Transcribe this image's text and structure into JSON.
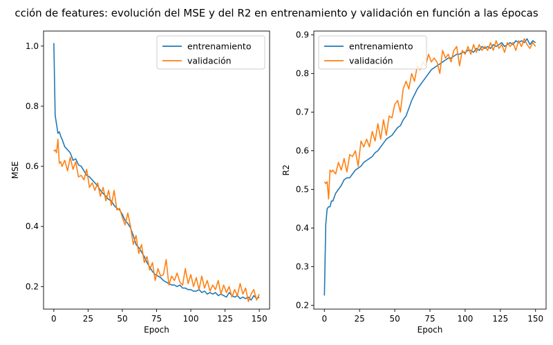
{
  "figure": {
    "title": "cción de features: evolución del MSE y del R2 en entrenamiento y validación en función a las épocas"
  },
  "colors": {
    "train": "#1f77b4",
    "val": "#ff7f0e"
  },
  "chart_data": [
    {
      "type": "line",
      "xlabel": "Epoch",
      "ylabel": "MSE",
      "xlim": [
        -7.5,
        157.5
      ],
      "ylim": [
        0.125,
        1.05
      ],
      "xticks": [
        0,
        25,
        50,
        75,
        100,
        125,
        150
      ],
      "yticks": [
        0.2,
        0.4,
        0.6,
        0.8,
        1.0
      ],
      "ytick_labels": [
        "0.2",
        "0.4",
        "0.6",
        "0.8",
        "1.0"
      ],
      "grid": false,
      "legend_position": "upper right",
      "series": [
        {
          "name": "entrenamiento",
          "color": "#1f77b4",
          "x": [
            0,
            1,
            2,
            3,
            4,
            5,
            6,
            8,
            10,
            12,
            14,
            16,
            18,
            20,
            22,
            24,
            26,
            28,
            30,
            32,
            34,
            36,
            38,
            40,
            42,
            44,
            46,
            48,
            50,
            52,
            54,
            56,
            58,
            60,
            62,
            64,
            66,
            68,
            70,
            72,
            74,
            76,
            78,
            80,
            82,
            84,
            86,
            88,
            90,
            92,
            94,
            96,
            98,
            100,
            102,
            104,
            106,
            108,
            110,
            112,
            114,
            116,
            118,
            120,
            122,
            124,
            126,
            128,
            130,
            132,
            134,
            136,
            138,
            140,
            142,
            144,
            146,
            148,
            150
          ],
          "y": [
            1.01,
            0.77,
            0.74,
            0.71,
            0.715,
            0.7,
            0.69,
            0.665,
            0.655,
            0.645,
            0.62,
            0.625,
            0.605,
            0.6,
            0.585,
            0.57,
            0.565,
            0.555,
            0.545,
            0.535,
            0.52,
            0.51,
            0.5,
            0.49,
            0.485,
            0.47,
            0.46,
            0.455,
            0.44,
            0.42,
            0.41,
            0.395,
            0.37,
            0.34,
            0.33,
            0.315,
            0.3,
            0.28,
            0.265,
            0.25,
            0.24,
            0.235,
            0.23,
            0.22,
            0.215,
            0.21,
            0.205,
            0.205,
            0.2,
            0.205,
            0.195,
            0.195,
            0.19,
            0.19,
            0.185,
            0.185,
            0.19,
            0.18,
            0.185,
            0.175,
            0.18,
            0.175,
            0.18,
            0.17,
            0.175,
            0.17,
            0.165,
            0.18,
            0.17,
            0.165,
            0.17,
            0.16,
            0.165,
            0.16,
            0.165,
            0.155,
            0.17,
            0.16,
            0.165
          ]
        },
        {
          "name": "validación",
          "color": "#ff7f0e",
          "x": [
            0,
            1,
            2,
            3,
            4,
            5,
            6,
            8,
            10,
            12,
            14,
            16,
            18,
            20,
            22,
            24,
            26,
            28,
            30,
            32,
            34,
            36,
            38,
            40,
            42,
            44,
            46,
            48,
            50,
            52,
            54,
            56,
            58,
            60,
            62,
            64,
            66,
            68,
            70,
            72,
            74,
            76,
            78,
            80,
            82,
            84,
            86,
            88,
            90,
            92,
            94,
            96,
            98,
            100,
            102,
            104,
            106,
            108,
            110,
            112,
            114,
            116,
            118,
            120,
            122,
            124,
            126,
            128,
            130,
            132,
            134,
            136,
            138,
            140,
            142,
            144,
            146,
            148,
            150
          ],
          "y": [
            0.65,
            0.655,
            0.645,
            0.69,
            0.61,
            0.615,
            0.6,
            0.62,
            0.585,
            0.63,
            0.59,
            0.615,
            0.565,
            0.57,
            0.555,
            0.59,
            0.53,
            0.545,
            0.52,
            0.545,
            0.5,
            0.53,
            0.485,
            0.52,
            0.47,
            0.52,
            0.455,
            0.46,
            0.43,
            0.405,
            0.445,
            0.4,
            0.34,
            0.37,
            0.31,
            0.34,
            0.28,
            0.3,
            0.255,
            0.28,
            0.22,
            0.26,
            0.235,
            0.24,
            0.29,
            0.205,
            0.235,
            0.22,
            0.245,
            0.215,
            0.205,
            0.26,
            0.21,
            0.24,
            0.2,
            0.23,
            0.19,
            0.235,
            0.195,
            0.22,
            0.185,
            0.205,
            0.19,
            0.22,
            0.175,
            0.205,
            0.18,
            0.2,
            0.165,
            0.19,
            0.17,
            0.21,
            0.175,
            0.195,
            0.15,
            0.175,
            0.19,
            0.155,
            0.175
          ]
        }
      ]
    },
    {
      "type": "line",
      "xlabel": "Epoch",
      "ylabel": "R2",
      "xlim": [
        -7.5,
        157.5
      ],
      "ylim": [
        0.19,
        0.91
      ],
      "xticks": [
        0,
        25,
        50,
        75,
        100,
        125,
        150
      ],
      "yticks": [
        0.2,
        0.3,
        0.4,
        0.5,
        0.6,
        0.7,
        0.8,
        0.9
      ],
      "ytick_labels": [
        "0.2",
        "0.3",
        "0.4",
        "0.5",
        "0.6",
        "0.7",
        "0.8",
        "0.9"
      ],
      "grid": false,
      "legend_position": "upper left",
      "series": [
        {
          "name": "entrenamiento",
          "color": "#1f77b4",
          "x": [
            0,
            1,
            2,
            3,
            4,
            5,
            6,
            8,
            10,
            12,
            14,
            16,
            18,
            20,
            22,
            24,
            26,
            28,
            30,
            32,
            34,
            36,
            38,
            40,
            42,
            44,
            46,
            48,
            50,
            52,
            54,
            56,
            58,
            60,
            62,
            64,
            66,
            68,
            70,
            72,
            74,
            76,
            78,
            80,
            82,
            84,
            86,
            88,
            90,
            92,
            94,
            96,
            98,
            100,
            102,
            104,
            106,
            108,
            110,
            112,
            114,
            116,
            118,
            120,
            122,
            124,
            126,
            128,
            130,
            132,
            134,
            136,
            138,
            140,
            142,
            144,
            146,
            148,
            150
          ],
          "y": [
            0.225,
            0.41,
            0.45,
            0.455,
            0.455,
            0.47,
            0.47,
            0.49,
            0.5,
            0.51,
            0.525,
            0.53,
            0.53,
            0.54,
            0.55,
            0.555,
            0.56,
            0.57,
            0.575,
            0.58,
            0.585,
            0.595,
            0.6,
            0.61,
            0.62,
            0.63,
            0.635,
            0.64,
            0.65,
            0.66,
            0.665,
            0.68,
            0.69,
            0.71,
            0.73,
            0.745,
            0.76,
            0.77,
            0.78,
            0.79,
            0.8,
            0.81,
            0.815,
            0.82,
            0.825,
            0.83,
            0.835,
            0.84,
            0.84,
            0.845,
            0.85,
            0.85,
            0.855,
            0.855,
            0.86,
            0.86,
            0.855,
            0.865,
            0.86,
            0.87,
            0.865,
            0.87,
            0.865,
            0.875,
            0.87,
            0.875,
            0.88,
            0.87,
            0.875,
            0.88,
            0.875,
            0.885,
            0.88,
            0.885,
            0.88,
            0.89,
            0.875,
            0.885,
            0.88
          ]
        },
        {
          "name": "validación",
          "color": "#ff7f0e",
          "x": [
            0,
            1,
            2,
            3,
            4,
            5,
            6,
            8,
            10,
            12,
            14,
            16,
            18,
            20,
            22,
            24,
            26,
            28,
            30,
            32,
            34,
            36,
            38,
            40,
            42,
            44,
            46,
            48,
            50,
            52,
            54,
            56,
            58,
            60,
            62,
            64,
            66,
            68,
            70,
            72,
            74,
            76,
            78,
            80,
            82,
            84,
            86,
            88,
            90,
            92,
            94,
            96,
            98,
            100,
            102,
            104,
            106,
            108,
            110,
            112,
            114,
            116,
            118,
            120,
            122,
            124,
            126,
            128,
            130,
            132,
            134,
            136,
            138,
            140,
            142,
            144,
            146,
            148,
            150
          ],
          "y": [
            0.52,
            0.515,
            0.52,
            0.475,
            0.55,
            0.545,
            0.55,
            0.54,
            0.57,
            0.55,
            0.58,
            0.545,
            0.59,
            0.585,
            0.6,
            0.56,
            0.625,
            0.61,
            0.63,
            0.61,
            0.65,
            0.625,
            0.67,
            0.63,
            0.68,
            0.64,
            0.69,
            0.685,
            0.72,
            0.73,
            0.7,
            0.76,
            0.78,
            0.76,
            0.8,
            0.78,
            0.82,
            0.81,
            0.83,
            0.82,
            0.85,
            0.83,
            0.84,
            0.83,
            0.8,
            0.86,
            0.84,
            0.85,
            0.83,
            0.86,
            0.87,
            0.82,
            0.86,
            0.85,
            0.87,
            0.85,
            0.875,
            0.855,
            0.875,
            0.86,
            0.87,
            0.86,
            0.88,
            0.86,
            0.885,
            0.865,
            0.875,
            0.855,
            0.88,
            0.87,
            0.88,
            0.86,
            0.885,
            0.87,
            0.89,
            0.875,
            0.865,
            0.88,
            0.87
          ]
        }
      ]
    }
  ]
}
